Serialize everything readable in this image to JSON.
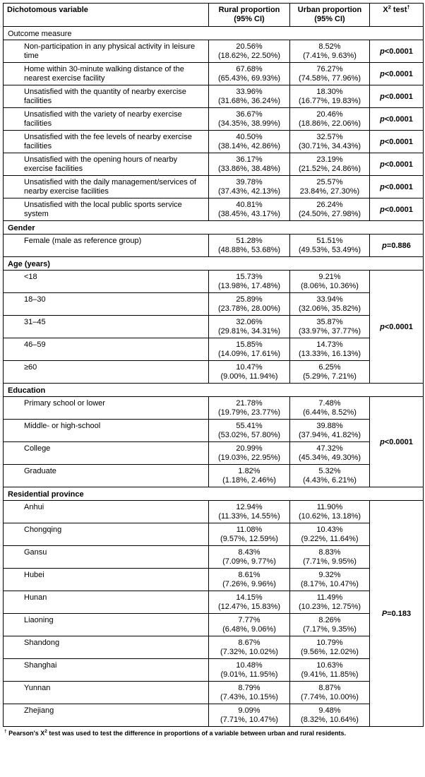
{
  "table": {
    "header": {
      "variable": "Dichotomous variable",
      "rural_line1": "Rural proportion",
      "rural_line2": "(95% CI)",
      "urban_line1": "Urban proportion",
      "urban_line2": "(95% CI)",
      "chi_base": "X",
      "chi_sup": "2",
      "chi_rest": " test",
      "chi_dagger": "†"
    },
    "sections": [
      {
        "title": "Outcome measure",
        "title_bold": false,
        "merged_p": false,
        "rows": [
          {
            "label": "Non-participation in any physical activity in leisure time",
            "rural": "20.56%",
            "rural_ci": "(18.62%, 22.50%)",
            "urban": "8.52%",
            "urban_ci": "(7.41%, 9.63%)",
            "p_var": "p",
            "p_rest": "<0.0001"
          },
          {
            "label": "Home within 30-minute walking distance of the nearest exercise facility",
            "rural": "67.68%",
            "rural_ci": "(65.43%, 69.93%)",
            "urban": "76.27%",
            "urban_ci": "(74.58%, 77.96%)",
            "p_var": "p",
            "p_rest": "<0.0001"
          },
          {
            "label": "Unsatisfied with the quantity of nearby exercise facilities",
            "rural": "33.96%",
            "rural_ci": "(31.68%, 36.24%)",
            "urban": "18.30%",
            "urban_ci": "(16.77%, 19.83%)",
            "p_var": "p",
            "p_rest": "<0.0001"
          },
          {
            "label": "Unsatisfied with the variety of nearby exercise facilities",
            "rural": "36.67%",
            "rural_ci": "(34.35%, 38.99%)",
            "urban": "20.46%",
            "urban_ci": "(18.86%, 22.06%)",
            "p_var": "p",
            "p_rest": "<0.0001"
          },
          {
            "label": "Unsatisfied with the fee levels of nearby exercise facilities",
            "rural": "40.50%",
            "rural_ci": "(38.14%, 42.86%)",
            "urban": "32.57%",
            "urban_ci": "(30.71%, 34.43%)",
            "p_var": "p",
            "p_rest": "<0.0001"
          },
          {
            "label": "Unsatisfied with the opening hours of nearby exercise facilities",
            "rural": "36.17%",
            "rural_ci": "(33.86%, 38.48%)",
            "urban": "23.19%",
            "urban_ci": "(21.52%, 24.86%)",
            "p_var": "p",
            "p_rest": "<0.0001"
          },
          {
            "label": "Unsatisfied with the daily management/services of nearby exercise facilities",
            "rural": "39.78%",
            "rural_ci": "(37.43%, 42.13%)",
            "urban": "25.57%",
            "urban_ci": "23.84%, 27.30%)",
            "p_var": "p",
            "p_rest": "<0.0001"
          },
          {
            "label": "Unsatisfied with the local public sports service system",
            "rural": "40.81%",
            "rural_ci": "(38.45%, 43.17%)",
            "urban": "26.24%",
            "urban_ci": "(24.50%, 27.98%)",
            "p_var": "p",
            "p_rest": "<0.0001"
          }
        ]
      },
      {
        "title": "Gender",
        "title_bold": true,
        "merged_p": false,
        "rows": [
          {
            "label": "Female (male as reference group)",
            "rural": "51.28%",
            "rural_ci": "(48.88%, 53.68%)",
            "urban": "51.51%",
            "urban_ci": "(49.53%, 53.49%)",
            "p_var": "p",
            "p_rest": "=0.886"
          }
        ]
      },
      {
        "title": "Age (years)",
        "title_bold": true,
        "merged_p": true,
        "p_var": "p",
        "p_rest": "<0.0001",
        "rows": [
          {
            "label": "<18",
            "rural": "15.73%",
            "rural_ci": "(13.98%, 17.48%)",
            "urban": "9.21%",
            "urban_ci": "(8.06%, 10.36%)"
          },
          {
            "label": "18–30",
            "rural": "25.89%",
            "rural_ci": "(23.78%, 28.00%)",
            "urban": "33.94%",
            "urban_ci": "(32.06%, 35.82%)"
          },
          {
            "label": "31–45",
            "rural": "32.06%",
            "rural_ci": "(29.81%, 34.31%)",
            "urban": "35.87%",
            "urban_ci": "(33.97%, 37.77%)"
          },
          {
            "label": "46–59",
            "rural": "15.85%",
            "rural_ci": "(14.09%, 17.61%)",
            "urban": "14.73%",
            "urban_ci": "(13.33%, 16.13%)"
          },
          {
            "label": "≥60",
            "rural": "10.47%",
            "rural_ci": "(9.00%, 11.94%)",
            "urban": "6.25%",
            "urban_ci": "(5.29%, 7.21%)"
          }
        ]
      },
      {
        "title": "Education",
        "title_bold": true,
        "merged_p": true,
        "p_var": "p",
        "p_rest": "<0.0001",
        "rows": [
          {
            "label": "Primary school or lower",
            "rural": "21.78%",
            "rural_ci": "(19.79%, 23.77%)",
            "urban": "7.48%",
            "urban_ci": "(6.44%, 8.52%)"
          },
          {
            "label": "Middle- or high-school",
            "rural": "55.41%",
            "rural_ci": "(53.02%, 57.80%)",
            "urban": "39.88%",
            "urban_ci": "(37.94%, 41.82%)"
          },
          {
            "label": "College",
            "rural": "20.99%",
            "rural_ci": "(19.03%, 22.95%)",
            "urban": "47.32%",
            "urban_ci": "(45.34%, 49.30%)"
          },
          {
            "label": "Graduate",
            "rural": "1.82%",
            "rural_ci": "(1.18%, 2.46%)",
            "urban": "5.32%",
            "urban_ci": "(4.43%, 6.21%)"
          }
        ]
      },
      {
        "title": "Residential province",
        "title_bold": true,
        "merged_p": true,
        "p_var": "P",
        "p_rest": "=0.183",
        "rows": [
          {
            "label": "Anhui",
            "rural": "12.94%",
            "rural_ci": "(11.33%, 14.55%)",
            "urban": "11.90%",
            "urban_ci": "(10.62%, 13.18%)"
          },
          {
            "label": "Chongqing",
            "rural": "11.08%",
            "rural_ci": "(9.57%, 12.59%)",
            "urban": "10.43%",
            "urban_ci": "(9.22%, 11.64%)"
          },
          {
            "label": "Gansu",
            "rural": "8.43%",
            "rural_ci": "(7.09%, 9.77%)",
            "urban": "8.83%",
            "urban_ci": "(7.71%, 9.95%)"
          },
          {
            "label": "Hubei",
            "rural": "8.61%",
            "rural_ci": "(7.26%, 9.96%)",
            "urban": "9.32%",
            "urban_ci": "(8.17%, 10.47%)"
          },
          {
            "label": "Hunan",
            "rural": "14.15%",
            "rural_ci": "(12.47%, 15.83%)",
            "urban": "11.49%",
            "urban_ci": "(10.23%, 12.75%)"
          },
          {
            "label": "Liaoning",
            "rural": "7.77%",
            "rural_ci": "(6.48%, 9.06%)",
            "urban": "8.26%",
            "urban_ci": "(7.17%, 9.35%)"
          },
          {
            "label": "Shandong",
            "rural": "8.67%",
            "rural_ci": "(7.32%, 10.02%)",
            "urban": "10.79%",
            "urban_ci": "(9.56%, 12.02%)"
          },
          {
            "label": "Shanghai",
            "rural": "10.48%",
            "rural_ci": "(9.01%, 11.95%)",
            "urban": "10.63%",
            "urban_ci": "(9.41%, 11.85%)"
          },
          {
            "label": "Yunnan",
            "rural": "8.79%",
            "rural_ci": "(7.43%, 10.15%)",
            "urban": "8.87%",
            "urban_ci": "(7.74%, 10.00%)"
          },
          {
            "label": "Zhejiang",
            "rural": "9.09%",
            "rural_ci": "(7.71%, 10.47%)",
            "urban": "9.48%",
            "urban_ci": "(8.32%, 10.64%)"
          }
        ]
      }
    ]
  },
  "footnote": {
    "dagger": "†",
    "text1": " Pearson's X",
    "sup": "2",
    "text2": " test was used to test the difference in proportions of a variable between urban and rural residents."
  }
}
